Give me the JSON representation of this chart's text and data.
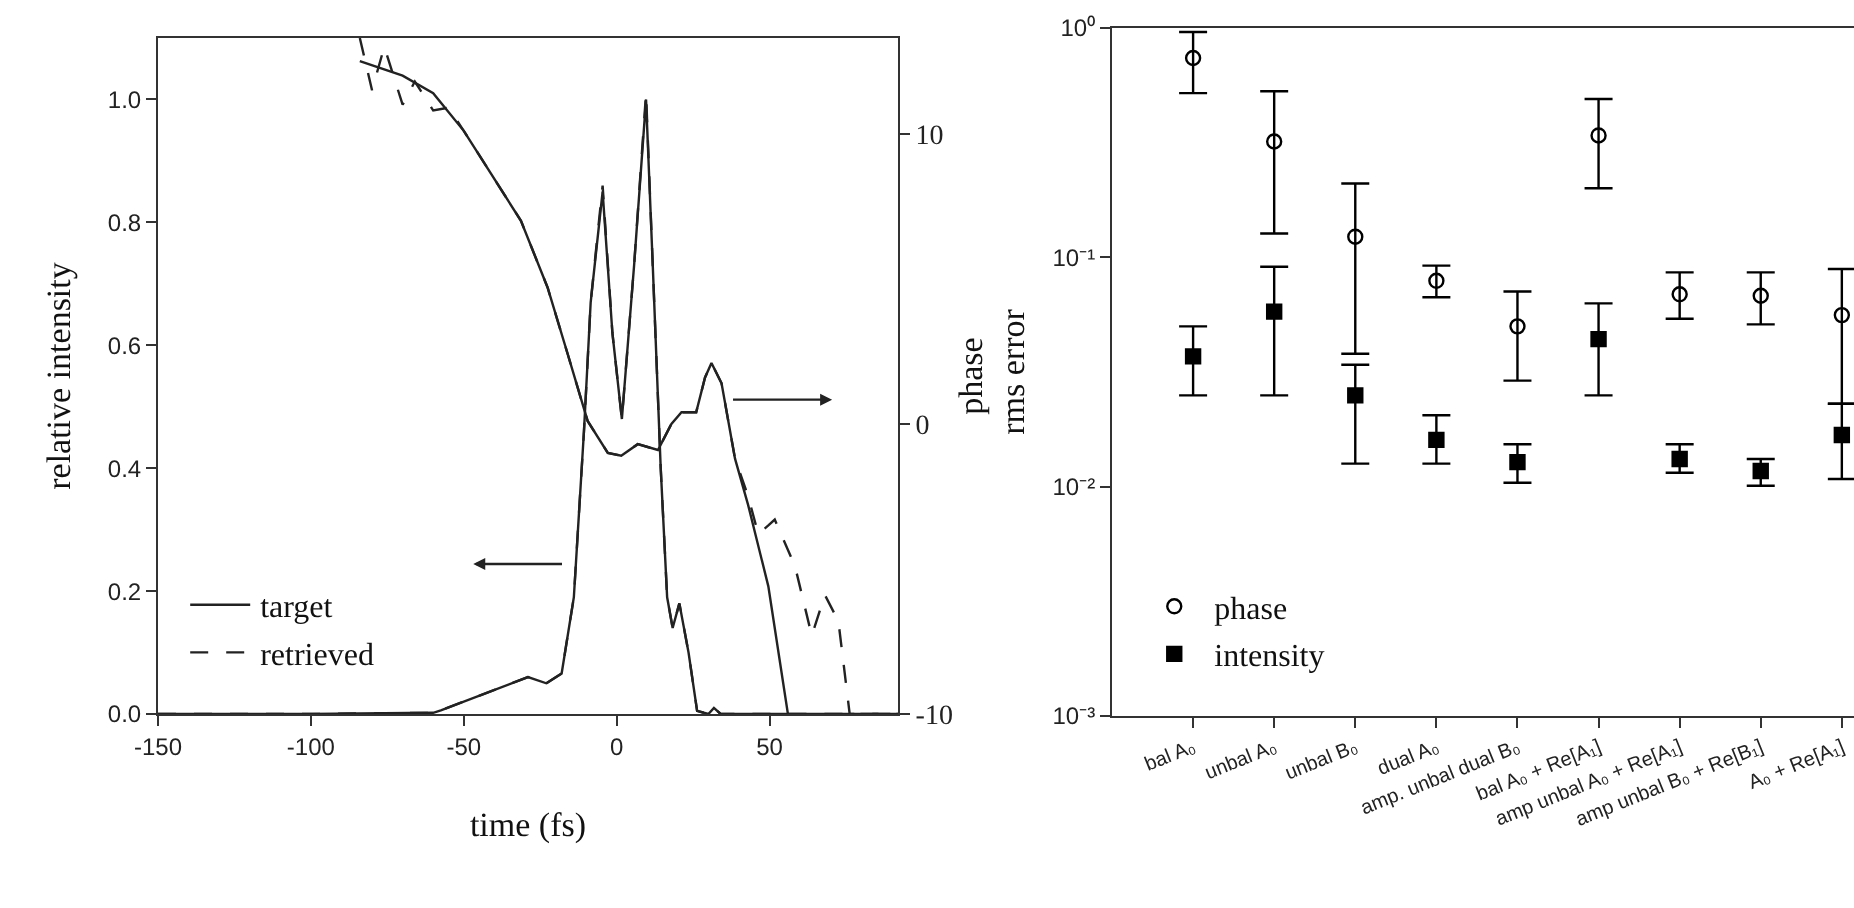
{
  "chart_data": [
    {
      "type": "line",
      "xlabel": "time (fs)",
      "ylabel": "relative intensity",
      "y2label": "phase",
      "xlim": [
        -150,
        92
      ],
      "xticks": [
        -150,
        -100,
        -50,
        0,
        50
      ],
      "ylim": [
        0,
        1.1
      ],
      "yticks": [
        {
          "value": 0,
          "label": "0.0"
        },
        {
          "value": 0.2,
          "label": "0.2"
        },
        {
          "value": 0.4,
          "label": "0.4"
        },
        {
          "value": 0.6,
          "label": "0.6"
        },
        {
          "value": 0.8,
          "label": "0.8"
        },
        {
          "value": 1,
          "label": "1.0"
        }
      ],
      "y2lim": [
        -10,
        13.3
      ],
      "y2ticks": [
        -10,
        0,
        10
      ],
      "legend": "bottom left",
      "series": [
        {
          "name": "target",
          "color": "#222222",
          "line_style": "solid",
          "x": [
            -150,
            -100,
            -60,
            -57.5,
            -29,
            -23,
            -18,
            -14,
            -10.7,
            -8.5,
            -4.6,
            -1.4,
            1.7,
            5.7,
            9.6,
            11.8,
            14.4,
            16.5,
            18.3,
            20.5,
            23.5,
            26.3,
            30,
            31.8,
            34,
            92
          ],
          "values": [
            0,
            0,
            0.002,
            0.006,
            0.06,
            0.05,
            0.066,
            0.19,
            0.46,
            0.67,
            0.85,
            0.62,
            0.48,
            0.73,
            1.0,
            0.73,
            0.4,
            0.19,
            0.14,
            0.18,
            0.1,
            0.005,
            0,
            0.01,
            0,
            0
          ]
        },
        {
          "name": "retrieved",
          "color": "#222222",
          "line_style": "dashed",
          "x": [
            -150,
            -100,
            -60,
            -57.5,
            -29,
            -23,
            -18,
            -14,
            -10.7,
            -8.5,
            -4.6,
            -1.4,
            1.7,
            5.7,
            9.6,
            11.8,
            14.4,
            16.5,
            18.3,
            20.5,
            23.5,
            26.3,
            30,
            31.8,
            34,
            92
          ],
          "values": [
            0,
            0,
            0.002,
            0.006,
            0.06,
            0.05,
            0.066,
            0.19,
            0.46,
            0.67,
            0.86,
            0.62,
            0.48,
            0.73,
            1.01,
            0.73,
            0.4,
            0.19,
            0.14,
            0.18,
            0.1,
            0.005,
            0,
            0.01,
            0,
            0
          ]
        },
        {
          "color": "#222222",
          "line_style": "solid",
          "axis": "y2",
          "x": [
            -84,
            -70,
            -60,
            -50,
            -31.3,
            -22.6,
            -16,
            -9.5,
            -2.9,
            1.5,
            6.9,
            13.5,
            17.9,
            21.2,
            26,
            28.9,
            31,
            34.3,
            38.7,
            43,
            49.6,
            56
          ],
          "values": [
            12.5,
            12.0,
            11.4,
            10.1,
            7.0,
            4.7,
            2.4,
            0.1,
            -1.0,
            -1.1,
            -0.7,
            -0.9,
            0.0,
            0.4,
            0.4,
            1.6,
            2.1,
            1.4,
            -1.2,
            -2.8,
            -5.6,
            -10
          ]
        },
        {
          "color": "#222222",
          "line_style": "dashed",
          "axis": "y2",
          "x": [
            -84,
            -80,
            -76,
            -70,
            -66,
            -60,
            -55,
            -50,
            -31.3,
            -22.6,
            -16,
            -9.5,
            -2.9,
            1.5,
            6.9,
            13.5,
            17.9,
            21.2,
            26,
            28.9,
            31,
            34.3,
            38.7,
            43,
            46.3,
            49.6,
            51.7,
            58.3,
            63.8,
            68.1,
            72.5,
            76.2,
            92
          ],
          "values": [
            13.3,
            11.5,
            13.0,
            11.0,
            11.8,
            10.8,
            10.9,
            10.1,
            7.0,
            4.7,
            2.4,
            0.1,
            -1.0,
            -1.1,
            -0.7,
            -0.9,
            0.0,
            0.4,
            0.4,
            1.6,
            2.1,
            1.4,
            -1.2,
            -2.5,
            -3.8,
            -3.5,
            -3.3,
            -4.9,
            -7.3,
            -5.9,
            -6.8,
            -10,
            -10
          ]
        }
      ]
    },
    {
      "type": "scatter",
      "ylabel": "rms error",
      "log": true,
      "ylim": [
        0.001,
        1
      ],
      "yticks": [
        {
          "value": 1,
          "label": "10⁰"
        },
        {
          "value": 0.1,
          "label": "10⁻¹"
        },
        {
          "value": 0.01,
          "label": "10⁻²"
        },
        {
          "value": 0.001,
          "label": "10⁻³"
        }
      ],
      "legend": "bottom left",
      "categories": [
        "bal A₀",
        "unbal A₀",
        "unbal B₀",
        "dual A₀",
        "amp. unbal dual B₀",
        "bal A₀ + Re[A₁]",
        "amp unbal A₀ + Re[A₁]",
        "amp unbal B₀ + Re[B₁]",
        "A₀ + Re[A₁]"
      ],
      "series": [
        {
          "name": "phase",
          "color": "#000000",
          "marker": "circle",
          "values": [
            0.74,
            0.32,
            0.123,
            0.079,
            0.05,
            0.34,
            0.069,
            0.068,
            0.056
          ],
          "errors": [
            [
              0.52,
              0.96
            ],
            [
              0.127,
              0.53
            ],
            [
              0.038,
              0.21
            ],
            [
              0.067,
              0.092
            ],
            [
              0.029,
              0.071
            ],
            [
              0.2,
              0.49
            ],
            [
              0.054,
              0.086
            ],
            [
              0.051,
              0.086
            ],
            [
              0.023,
              0.089
            ]
          ]
        },
        {
          "name": "intensity",
          "color": "#000000",
          "marker": "square",
          "values": [
            0.037,
            0.058,
            0.025,
            0.016,
            0.0128,
            0.044,
            0.0132,
            0.0117,
            0.0168
          ],
          "errors": [
            [
              0.025,
              0.05
            ],
            [
              0.025,
              0.091
            ],
            [
              0.0126,
              0.034
            ],
            [
              0.0126,
              0.0205
            ],
            [
              0.0104,
              0.0153
            ],
            [
              0.025,
              0.063
            ],
            [
              0.0115,
              0.0153
            ],
            [
              0.0101,
              0.0132
            ],
            [
              0.0108,
              0.023
            ]
          ]
        }
      ]
    }
  ]
}
